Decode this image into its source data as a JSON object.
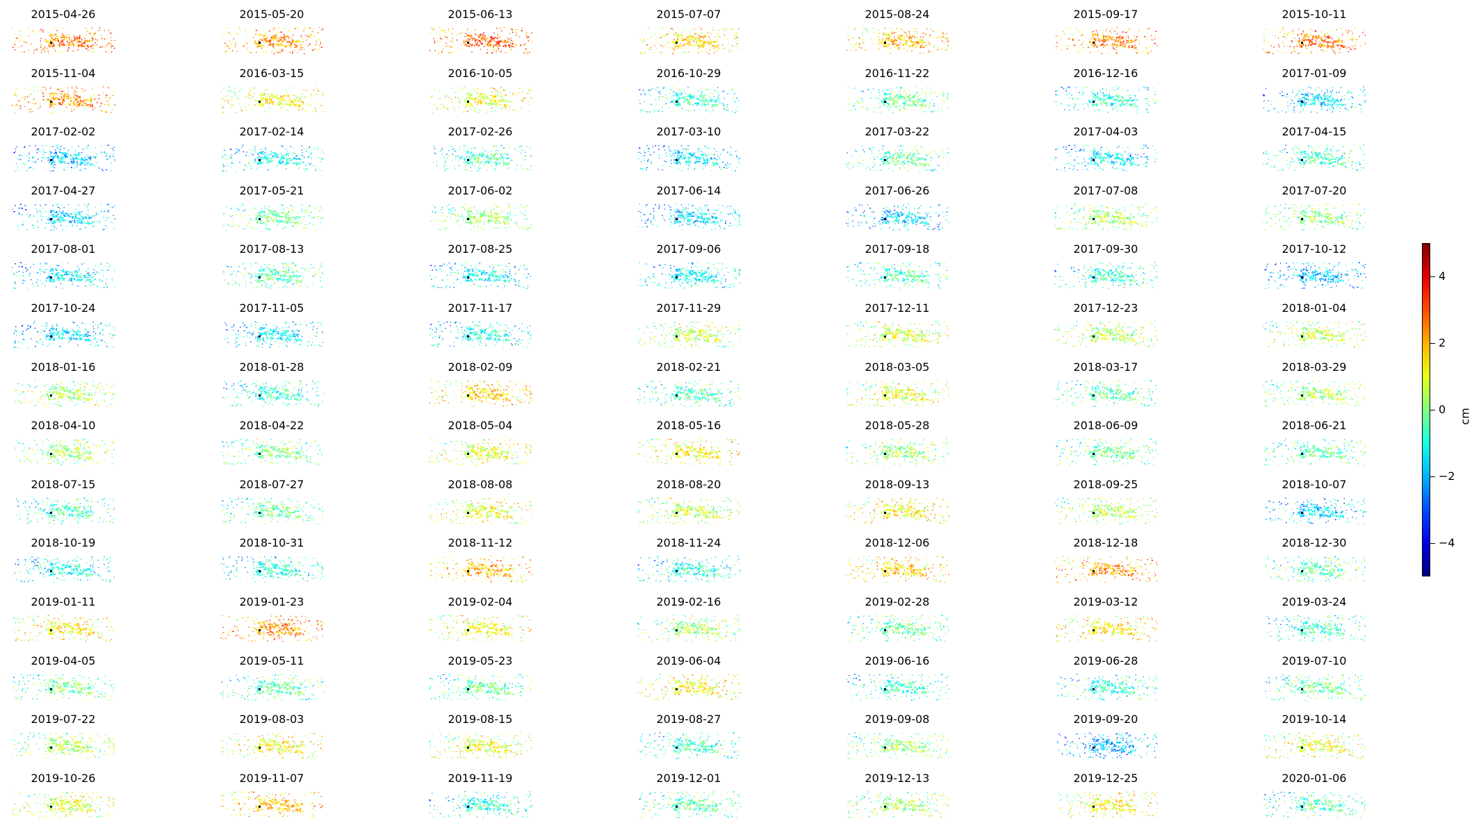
{
  "chart_data": {
    "type": "scatter",
    "description_type": "small-multiples grid of InSAR displacement maps",
    "panel_titles": [
      "2015-04-26",
      "2015-05-20",
      "2015-06-13",
      "2015-07-07",
      "2015-08-24",
      "2015-09-17",
      "2015-10-11",
      "2015-11-04",
      "2016-03-15",
      "2016-10-05",
      "2016-10-29",
      "2016-11-22",
      "2016-12-16",
      "2017-01-09",
      "2017-02-02",
      "2017-02-14",
      "2017-02-26",
      "2017-03-10",
      "2017-03-22",
      "2017-04-03",
      "2017-04-15",
      "2017-04-27",
      "2017-05-21",
      "2017-06-02",
      "2017-06-14",
      "2017-06-26",
      "2017-07-08",
      "2017-07-20",
      "2017-08-01",
      "2017-08-13",
      "2017-08-25",
      "2017-09-06",
      "2017-09-18",
      "2017-09-30",
      "2017-10-12",
      "2017-10-24",
      "2017-11-05",
      "2017-11-17",
      "2017-11-29",
      "2017-12-11",
      "2017-12-23",
      "2018-01-04",
      "2018-01-16",
      "2018-01-28",
      "2018-02-09",
      "2018-02-21",
      "2018-03-05",
      "2018-03-17",
      "2018-03-29",
      "2018-04-10",
      "2018-04-22",
      "2018-05-04",
      "2018-05-16",
      "2018-05-28",
      "2018-06-09",
      "2018-06-21",
      "2018-07-15",
      "2018-07-27",
      "2018-08-08",
      "2018-08-20",
      "2018-09-13",
      "2018-09-25",
      "2018-10-07",
      "2018-10-19",
      "2018-10-31",
      "2018-11-12",
      "2018-11-24",
      "2018-12-06",
      "2018-12-18",
      "2018-12-30",
      "2019-01-11",
      "2019-01-23",
      "2019-02-04",
      "2019-02-16",
      "2019-02-28",
      "2019-03-12",
      "2019-03-24",
      "2019-04-05",
      "2019-05-11",
      "2019-05-23",
      "2019-06-04",
      "2019-06-16",
      "2019-06-28",
      "2019-07-10",
      "2019-07-22",
      "2019-08-03",
      "2019-08-15",
      "2019-08-27",
      "2019-09-08",
      "2019-09-20",
      "2019-10-14",
      "2019-10-26",
      "2019-11-07",
      "2019-11-19",
      "2019-12-01",
      "2019-12-13",
      "2019-12-25",
      "2020-01-06"
    ],
    "panel_mean_displacement_cm": [
      2.5,
      2.2,
      2.8,
      1.5,
      1.8,
      2.4,
      2.6,
      2.3,
      1.2,
      1.0,
      -0.8,
      -0.3,
      -0.9,
      -1.5,
      -1.8,
      -1.2,
      -0.6,
      -1.5,
      -0.4,
      -1.4,
      -0.7,
      -1.6,
      -0.2,
      0.2,
      -1.6,
      -1.7,
      0.4,
      0.1,
      -1.4,
      -0.5,
      -1.2,
      -1.3,
      -0.6,
      -0.8,
      -1.9,
      -1.5,
      -1.3,
      -1.1,
      0.6,
      0.8,
      0.5,
      0.6,
      0.4,
      -0.8,
      1.6,
      -0.6,
      1.0,
      -0.4,
      0.3,
      0.3,
      0.0,
      0.9,
      1.2,
      0.2,
      -0.2,
      -0.4,
      -0.6,
      -0.3,
      1.0,
      0.6,
      1.3,
      0.5,
      -1.6,
      -1.1,
      -1.0,
      1.9,
      -0.9,
      1.6,
      2.2,
      -0.4,
      1.3,
      2.2,
      1.1,
      0.3,
      -0.3,
      1.4,
      -0.7,
      -0.2,
      -0.5,
      -0.3,
      1.2,
      -0.8,
      -0.9,
      -0.3,
      0.4,
      1.2,
      1.0,
      -0.7,
      0.2,
      -2.0,
      1.0,
      0.8,
      1.8,
      -0.9,
      -0.4,
      0.3,
      1.2,
      -0.6
    ],
    "colorbar": {
      "label": "cm",
      "vmin": -5,
      "vmax": 5,
      "ticks": [
        "4",
        "2",
        "0",
        "−2",
        "−4"
      ],
      "tick_values": [
        4,
        2,
        0,
        -2,
        -4
      ],
      "colormap": "jet"
    },
    "grid": false,
    "axes_visible": false,
    "reference_point_color": "#000000"
  }
}
